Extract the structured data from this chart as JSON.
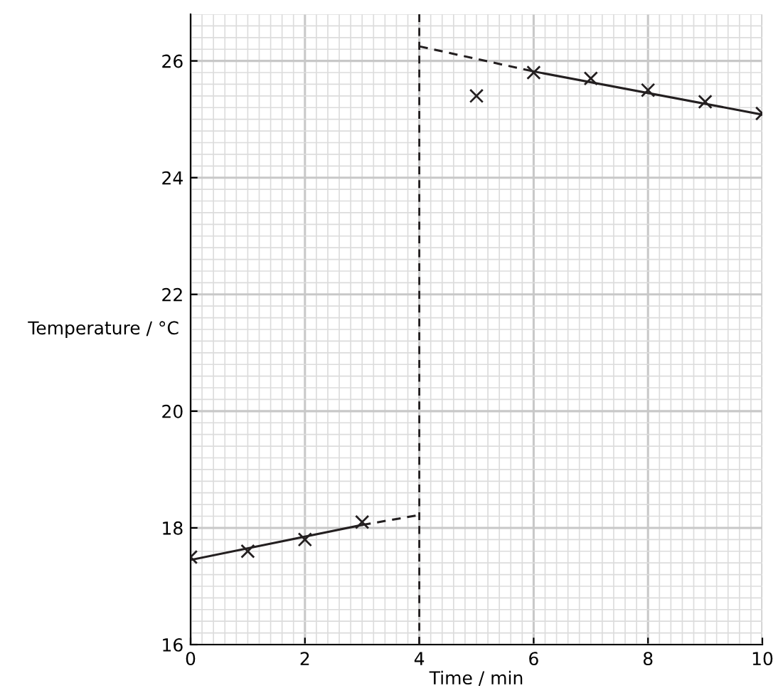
{
  "chart_data": {
    "type": "scatter",
    "xlabel": "Time / min",
    "ylabel": "Temperature / °C",
    "xlim": [
      0,
      10
    ],
    "ylim": [
      16,
      26.8
    ],
    "xticks": [
      0,
      2,
      4,
      6,
      8,
      10
    ],
    "yticks": [
      16,
      18,
      20,
      22,
      24,
      26
    ],
    "grid": true,
    "marker": "cross",
    "series": [
      {
        "color": "#231f20",
        "x": [
          0,
          1,
          2,
          3,
          5,
          6,
          7,
          8,
          9,
          10
        ],
        "values": [
          17.5,
          17.6,
          17.8,
          18.1,
          25.4,
          25.8,
          25.7,
          25.5,
          25.3,
          25.1
        ]
      },
      {
        "type": "line",
        "color": "#231f20",
        "marker": "none",
        "line_style": "solid",
        "x": [
          0,
          3
        ],
        "values": [
          17.45,
          18.05
        ]
      },
      {
        "type": "line",
        "color": "#231f20",
        "marker": "none",
        "line_style": "dashed",
        "x": [
          3,
          4
        ],
        "values": [
          18.05,
          18.22
        ]
      },
      {
        "type": "line",
        "color": "#231f20",
        "marker": "none",
        "line_style": "dashed",
        "x": [
          4,
          6
        ],
        "values": [
          26.25,
          25.82
        ]
      },
      {
        "type": "line",
        "color": "#231f20",
        "marker": "none",
        "line_style": "solid",
        "x": [
          6,
          10
        ],
        "values": [
          25.82,
          25.08
        ]
      }
    ],
    "ref_lines": [
      {
        "axis": "x",
        "value": 4,
        "color": "#231f20",
        "line_style": "dashed"
      }
    ]
  }
}
